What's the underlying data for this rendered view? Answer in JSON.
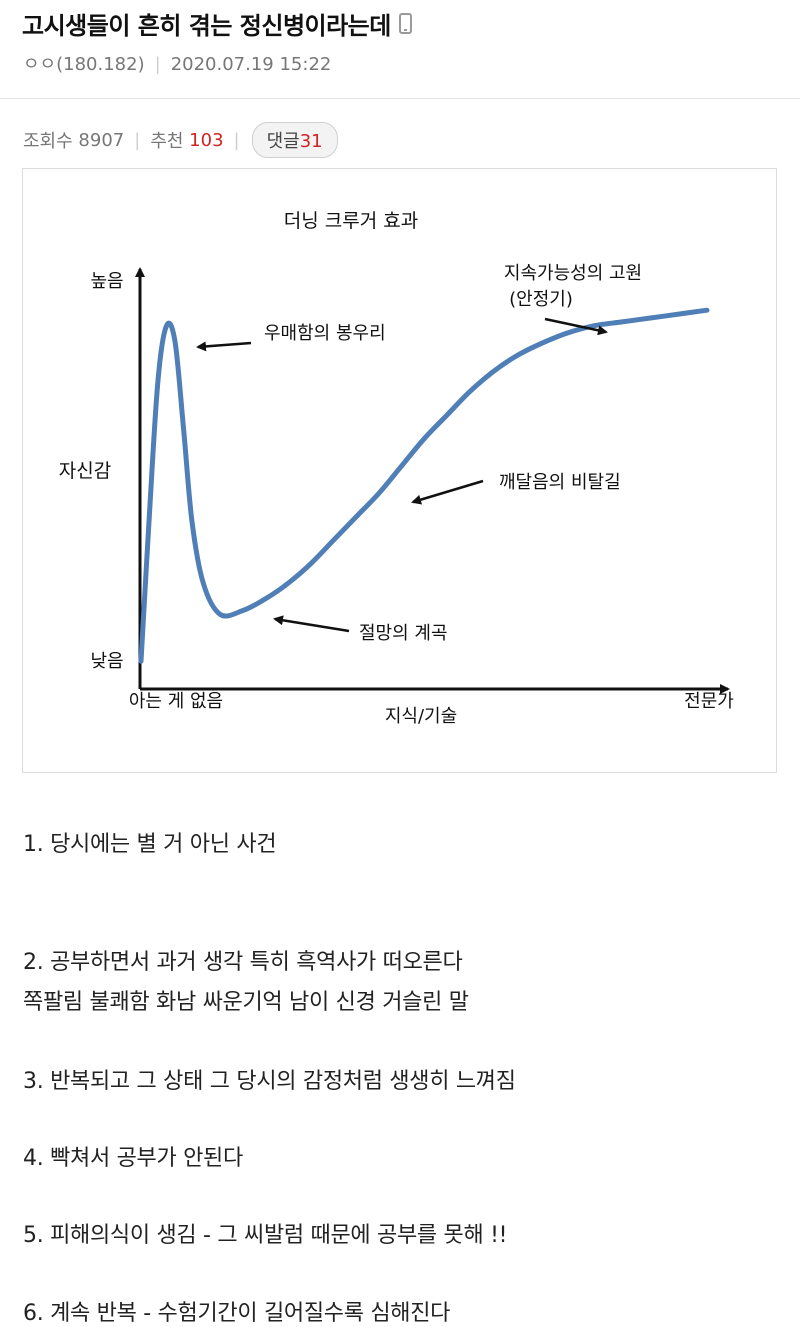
{
  "post": {
    "title": "고시생들이 흔히 겪는 정신병이라는데",
    "device_icon": "mobile-phone-icon",
    "author": "ㅇㅇ(180.182)",
    "datetime": "2020.07.19 15:22",
    "views_label": "조회수",
    "views": "8907",
    "recommend_label": "추천",
    "recommend": "103",
    "comments_label": "댓글",
    "comments": "31"
  },
  "chart_data": {
    "type": "line",
    "title": "더닝 크루거 효과",
    "xlabel": "지식/기술",
    "ylabel": "자신감",
    "x_tick_labels": [
      "아는 게 없음",
      "전문가"
    ],
    "y_tick_labels": [
      "낮음",
      "높음"
    ],
    "annotations": [
      "우매함의 봉우리",
      "절망의 계곡",
      "깨달음의 비탈길",
      "지속가능성의 고원",
      "(안정기)"
    ],
    "series": [
      {
        "color": "#4f7fb6",
        "x": [
          0,
          1.5,
          3,
          4.5,
          6,
          7.5,
          9,
          11,
          14,
          18,
          22,
          26,
          30,
          34,
          38,
          42,
          46,
          50,
          54,
          58,
          62,
          66,
          70,
          75,
          80,
          85,
          90,
          95,
          100
        ],
        "y": [
          2,
          40,
          74,
          88,
          84,
          62,
          38,
          22,
          14,
          15,
          18,
          22,
          27,
          33,
          39,
          45,
          52,
          59,
          65,
          71,
          76,
          80,
          83,
          86,
          88,
          89,
          90,
          91,
          92
        ]
      }
    ],
    "xlim": [
      0,
      100
    ],
    "ylim": [
      0,
      100
    ],
    "grid": false,
    "colors": {
      "curve": "#4f7fb6",
      "axes": "#111111"
    }
  },
  "content": {
    "lines": [
      "1. 당시에는 별 거 아닌 사건",
      "2. 공부하면서 과거 생각 특히 흑역사가 떠오른다",
      "쪽팔림 불쾌함 화남 싸운기억 남이 신경 거슬린 말",
      "3. 반복되고 그 상태 그 당시의 감정처럼 생생히 느껴짐",
      "4. 빡쳐서 공부가 안된다",
      "5. 피해의식이 생김 - 그 씨발럼 때문에 공부를 못해 !!",
      "6. 계속 반복 - 수험기간이 길어질수록 심해진다"
    ]
  }
}
